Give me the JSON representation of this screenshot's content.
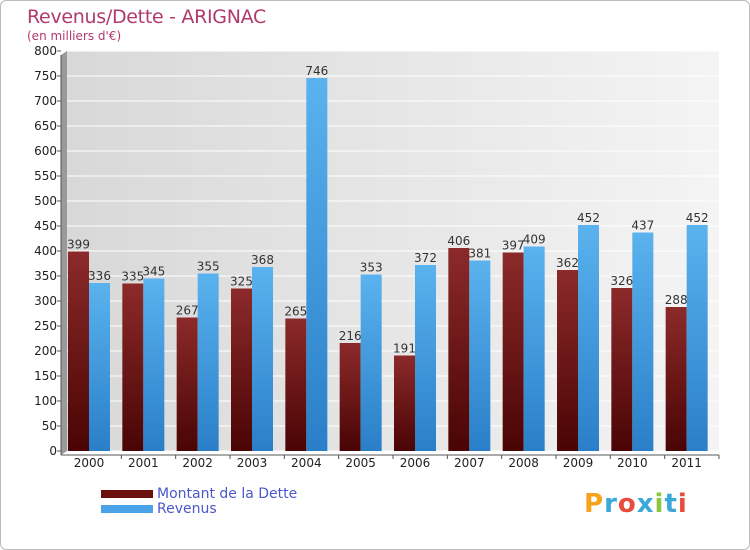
{
  "header": {
    "title": "Revenus/Dette - ARIGNAC",
    "subtitle": "(en milliers d'€)"
  },
  "chart_data": {
    "type": "bar",
    "title": "Revenus/Dette - ARIGNAC",
    "subtitle": "(en milliers d'€)",
    "xlabel": "",
    "ylabel": "(en milliers d'€)",
    "ylim": [
      0,
      800
    ],
    "yticks": [
      0,
      50,
      100,
      150,
      200,
      250,
      300,
      350,
      400,
      450,
      500,
      550,
      600,
      650,
      700,
      750,
      800
    ],
    "grid": true,
    "legend_position": "bottom-left",
    "categories": [
      "2000",
      "2001",
      "2002",
      "2003",
      "2004",
      "2005",
      "2006",
      "2007",
      "2008",
      "2009",
      "2010",
      "2011"
    ],
    "series": [
      {
        "name": "Montant de la Dette",
        "color": "#7a1a1a",
        "values": [
          399,
          335,
          267,
          325,
          265,
          216,
          191,
          406,
          397,
          362,
          326,
          288
        ]
      },
      {
        "name": "Revenus",
        "color": "#4aa3e6",
        "values": [
          336,
          345,
          355,
          368,
          746,
          353,
          372,
          381,
          409,
          452,
          437,
          452
        ]
      }
    ]
  },
  "legend": {
    "items": [
      {
        "label": "Montant de la Dette",
        "color": "#6b0f0f"
      },
      {
        "label": "Revenus",
        "color": "#4aa3e6"
      }
    ]
  },
  "logo": {
    "letters": [
      "P",
      "r",
      "o",
      "x",
      "i",
      "t",
      "i"
    ],
    "colors": [
      "#f7a21b",
      "#3aa8d8",
      "#e84c3d",
      "#3aa8d8",
      "#8cc63f",
      "#3aa8d8",
      "#e84c3d"
    ]
  }
}
